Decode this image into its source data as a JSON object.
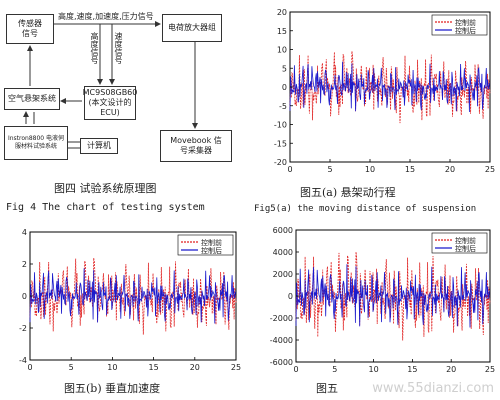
{
  "figure4": {
    "caption_cn": "图四 试验系统原理图",
    "caption_en": "Fig 4 The chart of testing system",
    "signal_label": "高度,速度,加速度,压力信号",
    "height_speed_label": "高度信号",
    "speed_label": "速度信号",
    "boxes": {
      "sensor": "传感器\n信号",
      "air_suspension": "空气悬架系统",
      "mcu": "MC9S08GB60\n(本文设计的\nECU)",
      "amplifier": "电荷放大器组",
      "movebook": "Movebook 信\n号采集器",
      "instron": "Instron8800 电液伺\n服材料试验系统",
      "computer": "计算机"
    }
  },
  "legend": {
    "before": "控制前",
    "after": "控制后"
  },
  "colors": {
    "before": "#e02020",
    "after": "#1a1acc"
  },
  "chart_data": [
    {
      "type": "line",
      "caption_cn": "图五(a) 悬架动行程",
      "caption_en": "Fig5(a) the moving distance of suspension",
      "ylim": [
        -20,
        20
      ],
      "yticks": [
        -20,
        -15,
        -10,
        -5,
        0,
        5,
        10,
        15,
        20
      ],
      "xlim": [
        0,
        25
      ],
      "xticks": [
        0,
        5,
        10,
        15,
        20,
        25
      ],
      "series": [
        {
          "name": "控制前",
          "amplitude": 10
        },
        {
          "name": "控制后",
          "amplitude": 7
        }
      ]
    },
    {
      "type": "line",
      "caption_cn": "图五(b) 垂直加速度",
      "ylim": [
        -4,
        4
      ],
      "yticks": [
        -4,
        -2,
        0,
        2,
        4
      ],
      "xlim": [
        0,
        25
      ],
      "xticks": [
        0,
        5,
        10,
        15,
        20,
        25
      ],
      "series": [
        {
          "name": "控制前",
          "amplitude": 2.5
        },
        {
          "name": "控制后",
          "amplitude": 1.8
        }
      ]
    },
    {
      "type": "line",
      "caption_cn": "图五",
      "ylim": [
        -6000,
        6000
      ],
      "yticks": [
        -6000,
        -4000,
        -2000,
        0,
        2000,
        4000,
        6000
      ],
      "xlim": [
        0,
        25
      ],
      "xticks": [
        0,
        5,
        10,
        15,
        20,
        25
      ],
      "series": [
        {
          "name": "控制前",
          "amplitude": 4200
        },
        {
          "name": "控制后",
          "amplitude": 3000
        }
      ]
    }
  ],
  "watermark": "www.55dianzi.com"
}
